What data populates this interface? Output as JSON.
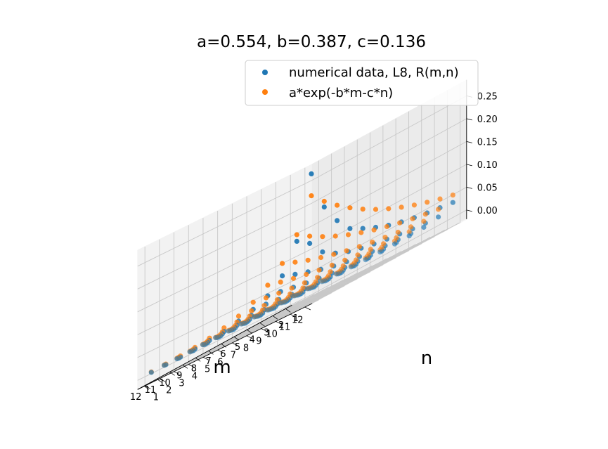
{
  "chart_data": {
    "type": "scatter3d",
    "title": "a=0.554, b=0.387, c=0.136",
    "xlabel": "m",
    "ylabel": "n",
    "zlabel": "",
    "x_ticks": [
      1,
      2,
      3,
      4,
      5,
      6,
      7,
      8,
      9,
      10,
      11,
      12
    ],
    "y_ticks": [
      1,
      2,
      3,
      4,
      5,
      6,
      7,
      8,
      9,
      10,
      11,
      12
    ],
    "z_ticks": [
      0.0,
      0.05,
      0.1,
      0.15,
      0.2,
      0.25
    ],
    "z_tick_labels": [
      "0.00",
      "0.05",
      "0.10",
      "0.15",
      "0.20",
      "0.25"
    ],
    "xlim": [
      1,
      12
    ],
    "ylim": [
      1,
      12
    ],
    "zlim": [
      0.0,
      0.28
    ],
    "grid": true,
    "legend_position": "top-right",
    "params": {
      "a": 0.554,
      "b": 0.387,
      "c": 0.136
    },
    "m_values": [
      1,
      2,
      3,
      4,
      5,
      6,
      7,
      8,
      9,
      10,
      11,
      12
    ],
    "n_values": [
      1,
      2,
      3,
      4,
      5,
      6,
      7,
      8,
      9,
      10,
      11,
      12
    ],
    "series": [
      {
        "name": "numerical data, L8, R(m,n)",
        "color": "#1f77b4",
        "rows_by_m": [
          [
            0.264,
            0.176,
            0.131,
            0.098,
            0.083,
            0.07,
            0.059,
            0.051,
            0.045,
            0.04,
            0.036,
            0.032
          ],
          [
            0.132,
            0.112,
            0.078,
            0.06,
            0.048,
            0.04,
            0.034,
            0.029,
            0.025,
            0.021,
            0.018,
            0.016
          ],
          [
            0.072,
            0.06,
            0.05,
            0.04,
            0.032,
            0.026,
            0.022,
            0.018,
            0.015,
            0.013,
            0.011,
            0.009
          ],
          [
            0.044,
            0.038,
            0.032,
            0.026,
            0.021,
            0.017,
            0.014,
            0.012,
            0.01,
            0.008,
            0.007,
            0.006
          ],
          [
            0.03,
            0.026,
            0.021,
            0.017,
            0.014,
            0.011,
            0.009,
            0.008,
            0.006,
            0.005,
            0.004,
            0.004
          ],
          [
            0.02,
            0.017,
            0.014,
            0.011,
            0.009,
            0.007,
            0.006,
            0.005,
            0.004,
            0.003,
            0.003,
            0.002
          ],
          [
            0.013,
            0.011,
            0.009,
            0.007,
            0.006,
            0.005,
            0.004,
            0.003,
            0.003,
            0.002,
            0.002,
            0.001
          ],
          [
            0.009,
            0.008,
            0.006,
            0.005,
            0.004,
            0.003,
            0.003,
            0.002,
            0.002,
            0.001,
            0.001,
            0.001
          ],
          [
            0.006,
            0.005,
            0.004,
            0.003,
            0.003,
            0.002,
            0.002,
            0.001,
            0.001,
            0.001,
            0.001,
            0.001
          ],
          [
            0.004,
            0.003,
            0.003,
            0.002,
            0.002,
            0.001,
            0.001,
            0.001,
            0.001,
            0.001,
            0.0,
            0.0
          ],
          [
            0.003,
            0.002,
            0.002,
            0.001,
            0.001,
            0.001,
            0.001,
            0.001,
            0.0,
            0.0,
            0.0,
            0.0
          ],
          [
            0.002,
            0.002,
            0.001,
            0.001,
            0.001,
            0.001,
            0.0,
            0.0,
            0.0,
            0.0,
            0.0,
            0.0
          ]
        ]
      },
      {
        "name": "a*exp(-b*m-c*n)",
        "color": "#ff7f0e",
        "rows_by_m": [
          [
            0.216,
            0.1885,
            0.1645,
            0.1435,
            0.1252,
            0.1093,
            0.0954,
            0.0832,
            0.0726,
            0.0634,
            0.0553,
            0.0483
          ],
          [
            0.1464,
            0.1278,
            0.1115,
            0.0973,
            0.0849,
            0.0741,
            0.0646,
            0.0564,
            0.0492,
            0.043,
            0.0375,
            0.0327
          ],
          [
            0.0993,
            0.0866,
            0.0756,
            0.066,
            0.0576,
            0.0502,
            0.0438,
            0.0382,
            0.0334,
            0.0291,
            0.0254,
            0.0222
          ],
          [
            0.0673,
            0.0587,
            0.0512,
            0.0447,
            0.039,
            0.0341,
            0.0297,
            0.0259,
            0.0226,
            0.0197,
            0.0172,
            0.015
          ],
          [
            0.0456,
            0.0398,
            0.0347,
            0.0303,
            0.0265,
            0.0231,
            0.0201,
            0.0176,
            0.0153,
            0.0134,
            0.0117,
            0.0102
          ],
          [
            0.0309,
            0.027,
            0.0236,
            0.0206,
            0.0179,
            0.0157,
            0.0137,
            0.0119,
            0.0104,
            0.0091,
            0.0079,
            0.0069
          ],
          [
            0.021,
            0.0183,
            0.016,
            0.0139,
            0.0122,
            0.0106,
            0.0093,
            0.0081,
            0.007,
            0.0061,
            0.0054,
            0.0047
          ],
          [
            0.0142,
            0.0124,
            0.0108,
            0.0094,
            0.0082,
            0.0072,
            0.0063,
            0.0055,
            0.0048,
            0.0042,
            0.0036,
            0.0032
          ],
          [
            0.0096,
            0.0084,
            0.0073,
            0.0064,
            0.0056,
            0.0049,
            0.0043,
            0.0037,
            0.0032,
            0.0028,
            0.0025,
            0.0021
          ],
          [
            0.0065,
            0.0057,
            0.005,
            0.0043,
            0.0038,
            0.0033,
            0.0029,
            0.0025,
            0.0022,
            0.0019,
            0.0017,
            0.0015
          ],
          [
            0.0044,
            0.0039,
            0.0034,
            0.0029,
            0.0026,
            0.0022,
            0.002,
            0.0017,
            0.0015,
            0.0013,
            0.0011,
            0.001
          ],
          [
            0.003,
            0.0026,
            0.0023,
            0.002,
            0.0017,
            0.0015,
            0.0013,
            0.0012,
            0.001,
            0.0009,
            0.0008,
            0.0007
          ]
        ]
      }
    ]
  }
}
